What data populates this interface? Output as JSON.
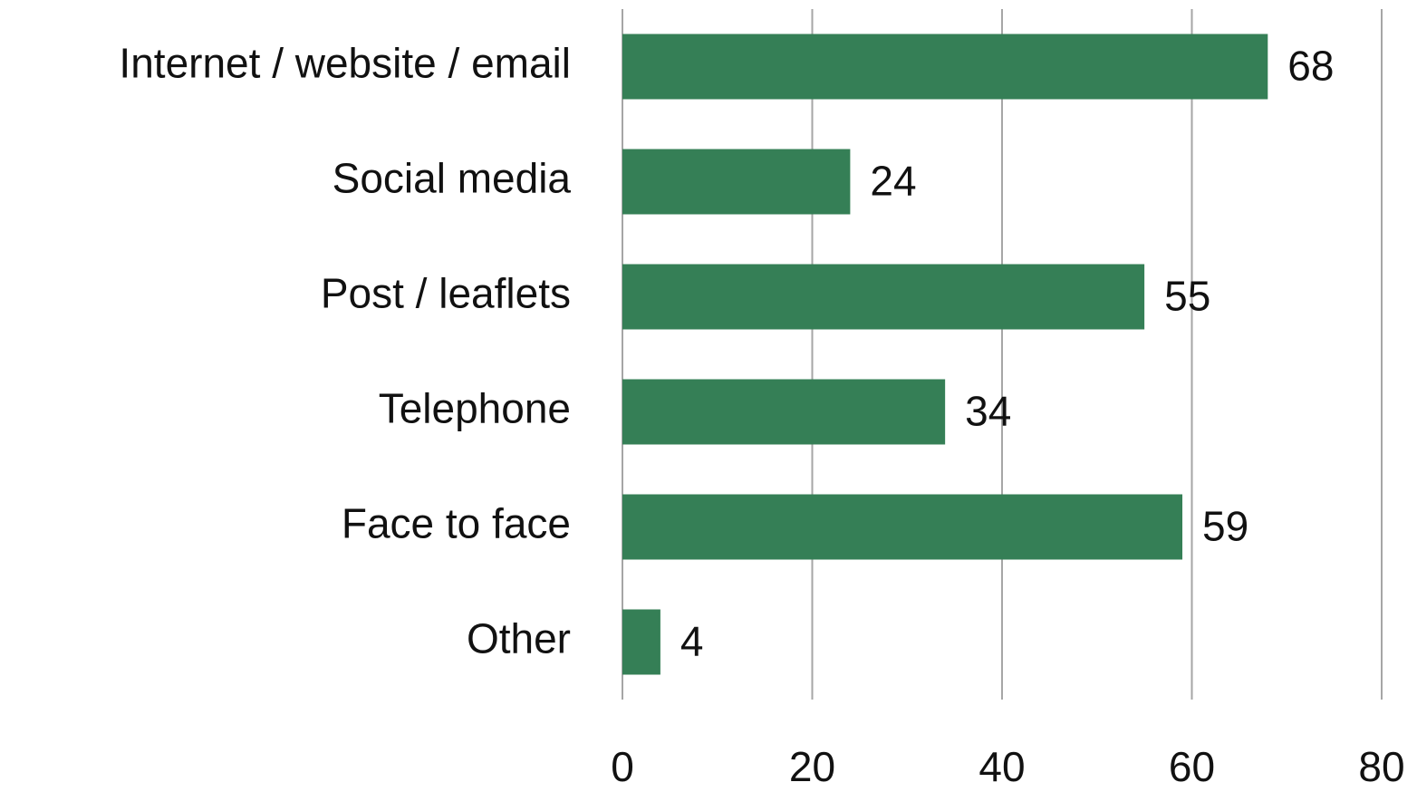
{
  "chart_data": {
    "type": "bar",
    "orientation": "horizontal",
    "categories": [
      "Internet / website / email",
      "Social media",
      "Post / leaflets",
      "Telephone",
      "Face to face",
      "Other"
    ],
    "values": [
      68,
      24,
      55,
      34,
      59,
      4
    ],
    "color": "#357f56",
    "xlim": [
      0,
      80
    ],
    "xticks": [
      0,
      20,
      40,
      60,
      80
    ],
    "grid": true
  }
}
